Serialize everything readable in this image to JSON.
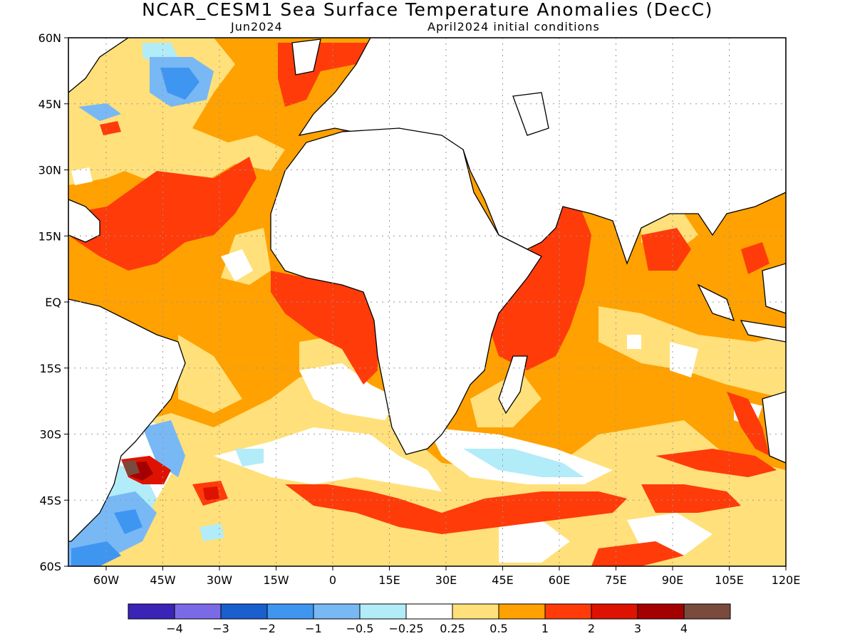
{
  "title": "NCAR_CESM1 Sea Surface Temperature Anomalies (DecC)",
  "subtitle_left": "Jun2024",
  "subtitle_right": "April2024 initial conditions",
  "axes": {
    "lat_ticks": [
      "60N",
      "45N",
      "30N",
      "15N",
      "EQ",
      "15S",
      "30S",
      "45S",
      "60S"
    ],
    "lat_values": [
      60,
      45,
      30,
      15,
      0,
      -15,
      -30,
      -45,
      -60
    ],
    "lon_ticks": [
      "60W",
      "45W",
      "30W",
      "15W",
      "0",
      "15E",
      "30E",
      "45E",
      "60E",
      "75E",
      "90E",
      "105E",
      "120E"
    ],
    "lon_values": [
      -60,
      -45,
      -30,
      -15,
      0,
      15,
      30,
      45,
      60,
      75,
      90,
      105,
      120
    ],
    "lon_range": [
      -70,
      120
    ],
    "lat_range": [
      -60,
      60
    ],
    "grid": "dotted"
  },
  "colorbar": {
    "labels": [
      "−4",
      "−3",
      "−2",
      "−1",
      "−0.5",
      "−0.25",
      "0.25",
      "0.5",
      "1",
      "2",
      "3",
      "4"
    ],
    "colors": [
      "#3a24b8",
      "#7b6ae8",
      "#1a5fd0",
      "#3f96f0",
      "#78b8f5",
      "#b2ecf8",
      "#ffffff",
      "#ffe07a",
      "#ffa100",
      "#ff3b0a",
      "#de1200",
      "#a50000",
      "#7a4a3c"
    ]
  },
  "palette": {
    "anom_0_5": "#ffe07a",
    "anom_1": "#ffa100",
    "anom_2": "#ff3b0a",
    "anom_3": "#de1200",
    "anom_4": "#7a4a3c",
    "anom_neg_025": "#b2ecf8",
    "anom_neg_05": "#78b8f5",
    "anom_neg_1": "#3f96f0"
  }
}
